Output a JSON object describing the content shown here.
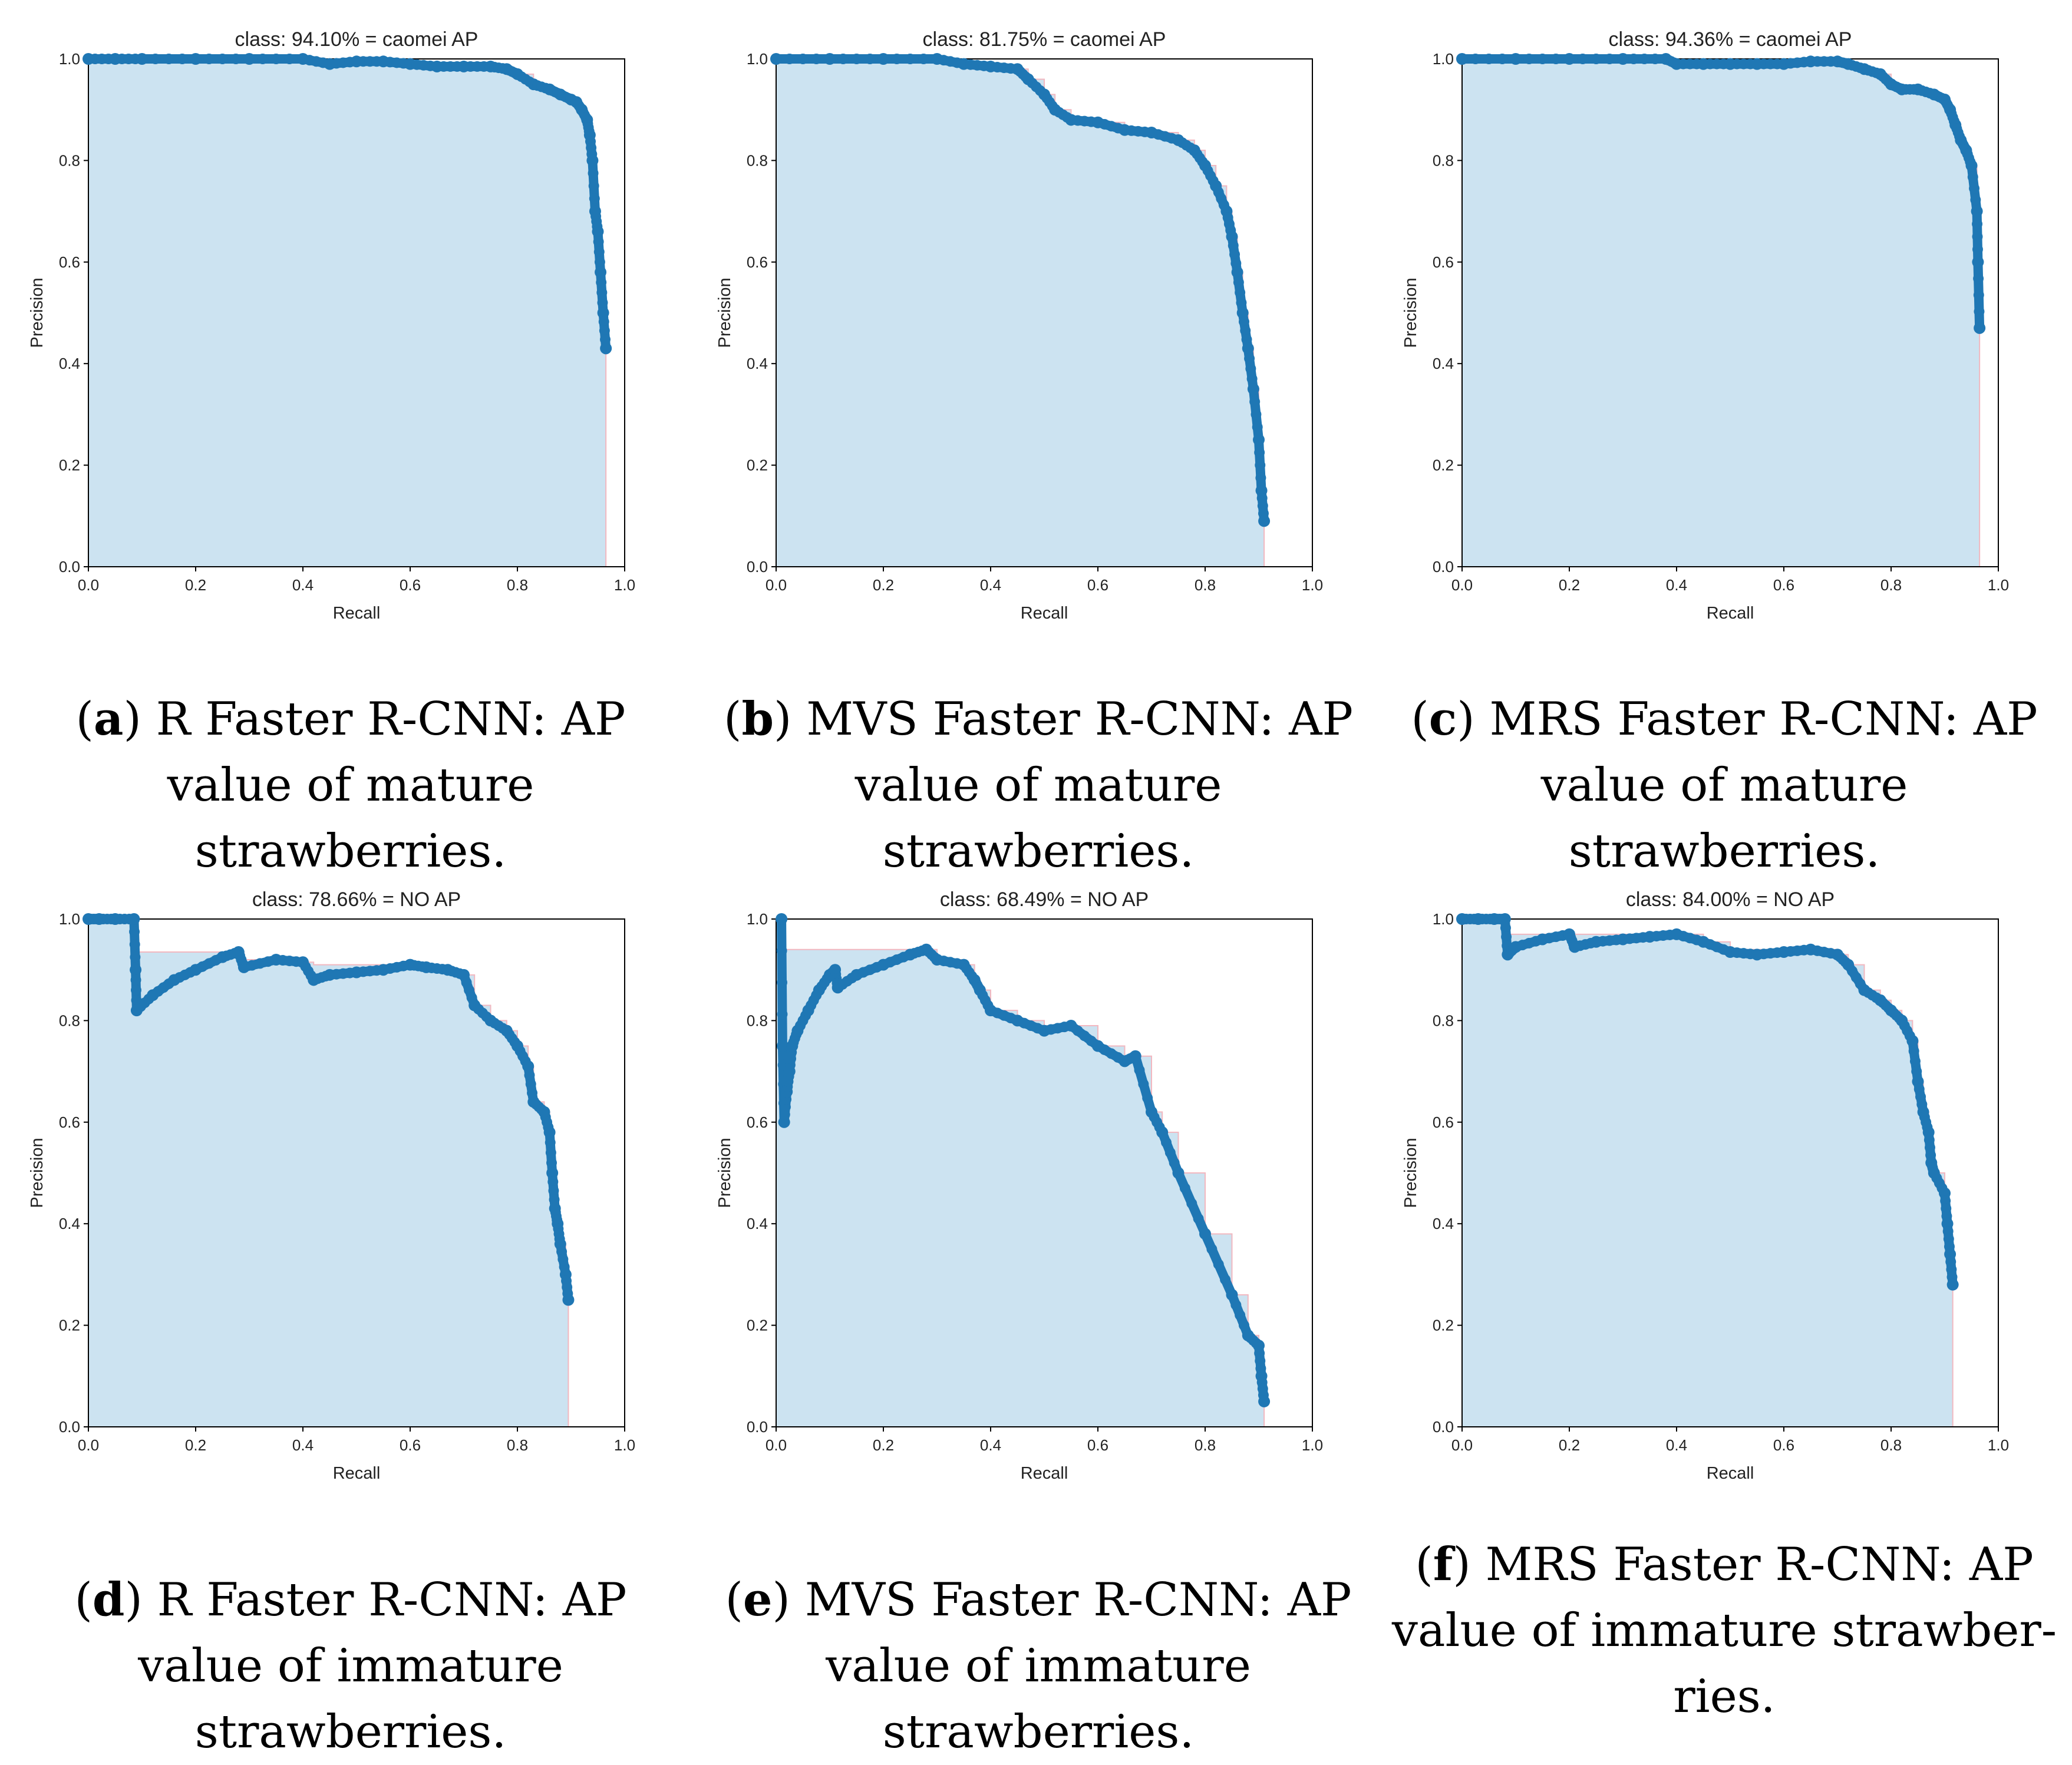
{
  "figure": {
    "panels": [
      {
        "letter": "a",
        "caption": ") R Faster R-CNN: AP value of mature strawberries.",
        "chart_data": {
          "type": "area",
          "title": "class: 94.10% = caomei AP",
          "xlabel": "Recall",
          "ylabel": "Precision",
          "xlim": [
            0.0,
            1.0
          ],
          "ylim": [
            0.0,
            1.0
          ],
          "xticks": [
            "0.0",
            "0.2",
            "0.4",
            "0.6",
            "0.8",
            "1.0"
          ],
          "yticks": [
            "0.0",
            "0.2",
            "0.4",
            "0.6",
            "0.8",
            "1.0"
          ],
          "recall_max": 0.965,
          "x": [
            0.0,
            0.05,
            0.1,
            0.2,
            0.3,
            0.4,
            0.45,
            0.5,
            0.55,
            0.6,
            0.65,
            0.7,
            0.75,
            0.78,
            0.8,
            0.83,
            0.86,
            0.88,
            0.9,
            0.91,
            0.92,
            0.93,
            0.935,
            0.94,
            0.945,
            0.95,
            0.955,
            0.96,
            0.965
          ],
          "y": [
            1.0,
            1.0,
            1.0,
            1.0,
            1.0,
            1.0,
            0.99,
            0.995,
            0.995,
            0.99,
            0.985,
            0.985,
            0.985,
            0.98,
            0.97,
            0.95,
            0.94,
            0.93,
            0.92,
            0.915,
            0.9,
            0.88,
            0.85,
            0.8,
            0.7,
            0.66,
            0.58,
            0.5,
            0.43
          ]
        }
      },
      {
        "letter": "b",
        "caption": ") MVS Faster R-CNN: AP value of mature strawberries.",
        "chart_data": {
          "type": "area",
          "title": "class: 81.75% = caomei AP",
          "xlabel": "Recall",
          "ylabel": "Precision",
          "xlim": [
            0.0,
            1.0
          ],
          "ylim": [
            0.0,
            1.0
          ],
          "xticks": [
            "0.0",
            "0.2",
            "0.4",
            "0.6",
            "0.8",
            "1.0"
          ],
          "yticks": [
            "0.0",
            "0.2",
            "0.4",
            "0.6",
            "0.8",
            "1.0"
          ],
          "recall_max": 0.91,
          "x": [
            0.0,
            0.1,
            0.2,
            0.3,
            0.35,
            0.4,
            0.45,
            0.47,
            0.5,
            0.52,
            0.55,
            0.6,
            0.65,
            0.7,
            0.75,
            0.78,
            0.8,
            0.82,
            0.84,
            0.85,
            0.86,
            0.87,
            0.88,
            0.89,
            0.9,
            0.905,
            0.91
          ],
          "y": [
            1.0,
            1.0,
            1.0,
            1.0,
            0.99,
            0.985,
            0.98,
            0.96,
            0.93,
            0.9,
            0.88,
            0.875,
            0.86,
            0.855,
            0.84,
            0.82,
            0.79,
            0.75,
            0.7,
            0.65,
            0.58,
            0.5,
            0.43,
            0.35,
            0.25,
            0.15,
            0.09
          ]
        }
      },
      {
        "letter": "c",
        "caption": ") MRS Faster R-CNN: AP value of mature strawberries.",
        "chart_data": {
          "type": "area",
          "title": "class: 94.36% = caomei AP",
          "xlabel": "Recall",
          "ylabel": "Precision",
          "xlim": [
            0.0,
            1.0
          ],
          "ylim": [
            0.0,
            1.0
          ],
          "xticks": [
            "0.0",
            "0.2",
            "0.4",
            "0.6",
            "0.8",
            "1.0"
          ],
          "yticks": [
            "0.0",
            "0.2",
            "0.4",
            "0.6",
            "0.8",
            "1.0"
          ],
          "recall_max": 0.965,
          "x": [
            0.0,
            0.1,
            0.2,
            0.3,
            0.38,
            0.4,
            0.45,
            0.5,
            0.55,
            0.6,
            0.65,
            0.7,
            0.72,
            0.75,
            0.78,
            0.8,
            0.82,
            0.85,
            0.88,
            0.9,
            0.91,
            0.92,
            0.93,
            0.94,
            0.95,
            0.96,
            0.962,
            0.965
          ],
          "y": [
            1.0,
            1.0,
            1.0,
            1.0,
            1.0,
            0.99,
            0.99,
            0.99,
            0.99,
            0.99,
            0.995,
            0.995,
            0.99,
            0.98,
            0.97,
            0.95,
            0.94,
            0.94,
            0.93,
            0.92,
            0.9,
            0.87,
            0.84,
            0.82,
            0.79,
            0.7,
            0.6,
            0.47
          ]
        }
      },
      {
        "letter": "d",
        "caption": ") R Faster R-CNN: AP value of immature strawberries.",
        "chart_data": {
          "type": "area",
          "title": "class: 78.66% = NO AP",
          "xlabel": "Recall",
          "ylabel": "Precision",
          "xlim": [
            0.0,
            1.0
          ],
          "ylim": [
            0.0,
            1.0
          ],
          "xticks": [
            "0.0",
            "0.2",
            "0.4",
            "0.6",
            "0.8",
            "1.0"
          ],
          "yticks": [
            "0.0",
            "0.2",
            "0.4",
            "0.6",
            "0.8",
            "1.0"
          ],
          "recall_max": 0.895,
          "interp_level": 0.935,
          "x": [
            0.0,
            0.02,
            0.05,
            0.085,
            0.088,
            0.09,
            0.12,
            0.16,
            0.2,
            0.25,
            0.28,
            0.29,
            0.35,
            0.4,
            0.42,
            0.45,
            0.5,
            0.55,
            0.6,
            0.63,
            0.67,
            0.7,
            0.72,
            0.75,
            0.78,
            0.8,
            0.82,
            0.83,
            0.85,
            0.86,
            0.865,
            0.87,
            0.875,
            0.88,
            0.89,
            0.895
          ],
          "y": [
            1.0,
            1.0,
            1.0,
            1.0,
            0.9,
            0.82,
            0.85,
            0.88,
            0.9,
            0.925,
            0.935,
            0.905,
            0.92,
            0.915,
            0.88,
            0.89,
            0.895,
            0.9,
            0.91,
            0.905,
            0.9,
            0.89,
            0.83,
            0.8,
            0.78,
            0.75,
            0.71,
            0.64,
            0.62,
            0.58,
            0.5,
            0.43,
            0.4,
            0.36,
            0.3,
            0.25
          ]
        }
      },
      {
        "letter": "e",
        "caption": ") MVS Faster R-CNN: AP value of immature strawberries.",
        "chart_data": {
          "type": "area",
          "title": "class: 68.49% = NO AP",
          "xlabel": "Recall",
          "ylabel": "Precision",
          "xlim": [
            0.0,
            1.0
          ],
          "ylim": [
            0.0,
            1.0
          ],
          "xticks": [
            "0.0",
            "0.2",
            "0.4",
            "0.6",
            "0.8",
            "1.0"
          ],
          "yticks": [
            "0.0",
            "0.2",
            "0.4",
            "0.6",
            "0.8",
            "1.0"
          ],
          "recall_max": 0.91,
          "interp_level": 0.94,
          "x": [
            0.01,
            0.012,
            0.015,
            0.02,
            0.025,
            0.03,
            0.04,
            0.06,
            0.08,
            0.1,
            0.11,
            0.115,
            0.15,
            0.2,
            0.25,
            0.28,
            0.3,
            0.35,
            0.37,
            0.38,
            0.4,
            0.45,
            0.5,
            0.55,
            0.6,
            0.65,
            0.67,
            0.7,
            0.72,
            0.75,
            0.8,
            0.85,
            0.88,
            0.9,
            0.905,
            0.91
          ],
          "y": [
            1.0,
            0.75,
            0.6,
            0.66,
            0.7,
            0.75,
            0.78,
            0.82,
            0.86,
            0.89,
            0.9,
            0.865,
            0.89,
            0.91,
            0.93,
            0.94,
            0.92,
            0.91,
            0.88,
            0.86,
            0.82,
            0.8,
            0.78,
            0.79,
            0.75,
            0.72,
            0.73,
            0.62,
            0.58,
            0.5,
            0.38,
            0.26,
            0.18,
            0.16,
            0.1,
            0.05
          ]
        }
      },
      {
        "letter": "f",
        "caption": ") MRS Faster R-CNN: AP value of immature strawber-ries.",
        "chart_data": {
          "type": "area",
          "title": "class: 84.00% = NO AP",
          "xlabel": "Recall",
          "ylabel": "Precision",
          "xlim": [
            0.0,
            1.0
          ],
          "ylim": [
            0.0,
            1.0
          ],
          "xticks": [
            "0.0",
            "0.2",
            "0.4",
            "0.6",
            "0.8",
            "1.0"
          ],
          "yticks": [
            "0.0",
            "0.2",
            "0.4",
            "0.6",
            "0.8",
            "1.0"
          ],
          "recall_max": 0.915,
          "interp_level": 0.97,
          "x": [
            0.0,
            0.03,
            0.06,
            0.08,
            0.085,
            0.1,
            0.15,
            0.2,
            0.21,
            0.25,
            0.3,
            0.35,
            0.4,
            0.45,
            0.5,
            0.55,
            0.6,
            0.65,
            0.7,
            0.72,
            0.75,
            0.78,
            0.8,
            0.82,
            0.84,
            0.85,
            0.86,
            0.87,
            0.875,
            0.88,
            0.9,
            0.905,
            0.91,
            0.915
          ],
          "y": [
            1.0,
            1.0,
            1.0,
            1.0,
            0.93,
            0.945,
            0.96,
            0.97,
            0.945,
            0.955,
            0.96,
            0.965,
            0.97,
            0.955,
            0.935,
            0.93,
            0.935,
            0.94,
            0.93,
            0.91,
            0.86,
            0.84,
            0.82,
            0.8,
            0.76,
            0.68,
            0.62,
            0.58,
            0.52,
            0.5,
            0.46,
            0.4,
            0.34,
            0.28
          ]
        }
      }
    ]
  }
}
